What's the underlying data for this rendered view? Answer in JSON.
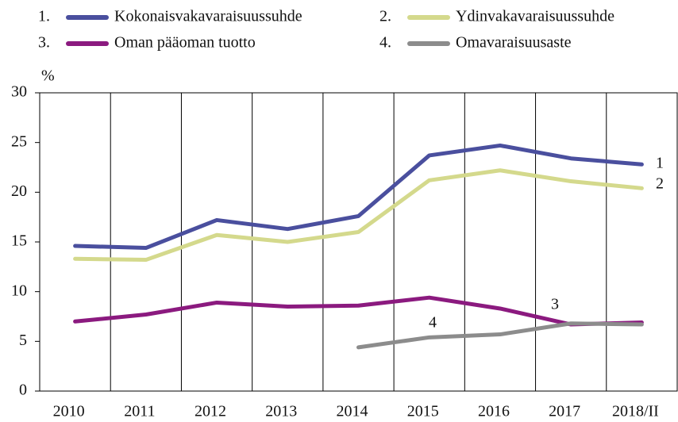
{
  "chart_data": {
    "type": "line",
    "y_label": "%",
    "categories": [
      "2010",
      "2011",
      "2012",
      "2013",
      "2014",
      "2015",
      "2016",
      "2017",
      "2018/II"
    ],
    "series": [
      {
        "number": "1.",
        "name": "Kokonaisvakavaraisuussuhde",
        "color": "#4a4f9e",
        "values": [
          14.6,
          14.4,
          17.2,
          16.3,
          17.6,
          23.7,
          24.7,
          23.4,
          22.8
        ]
      },
      {
        "number": "2.",
        "name": "Ydinvakavaraisuussuhde",
        "color": "#d4d98c",
        "values": [
          13.3,
          13.2,
          15.7,
          15.0,
          16.0,
          21.2,
          22.2,
          21.1,
          20.4
        ]
      },
      {
        "number": "3.",
        "name": "Oman pääoman tuotto",
        "color": "#8b1a7f",
        "values": [
          7.0,
          7.7,
          8.9,
          8.5,
          8.6,
          9.4,
          8.3,
          6.7,
          6.9
        ]
      },
      {
        "number": "4.",
        "name": "Omavaraisuusaste",
        "color": "#8c8c8c",
        "values": [
          null,
          null,
          null,
          null,
          4.4,
          5.4,
          5.7,
          6.8,
          6.7
        ]
      }
    ],
    "annotations": [
      "1",
      "2",
      "3",
      "4"
    ],
    "ylim": [
      0,
      30
    ],
    "yticks": [
      0,
      5,
      10,
      15,
      20,
      25,
      30
    ]
  }
}
